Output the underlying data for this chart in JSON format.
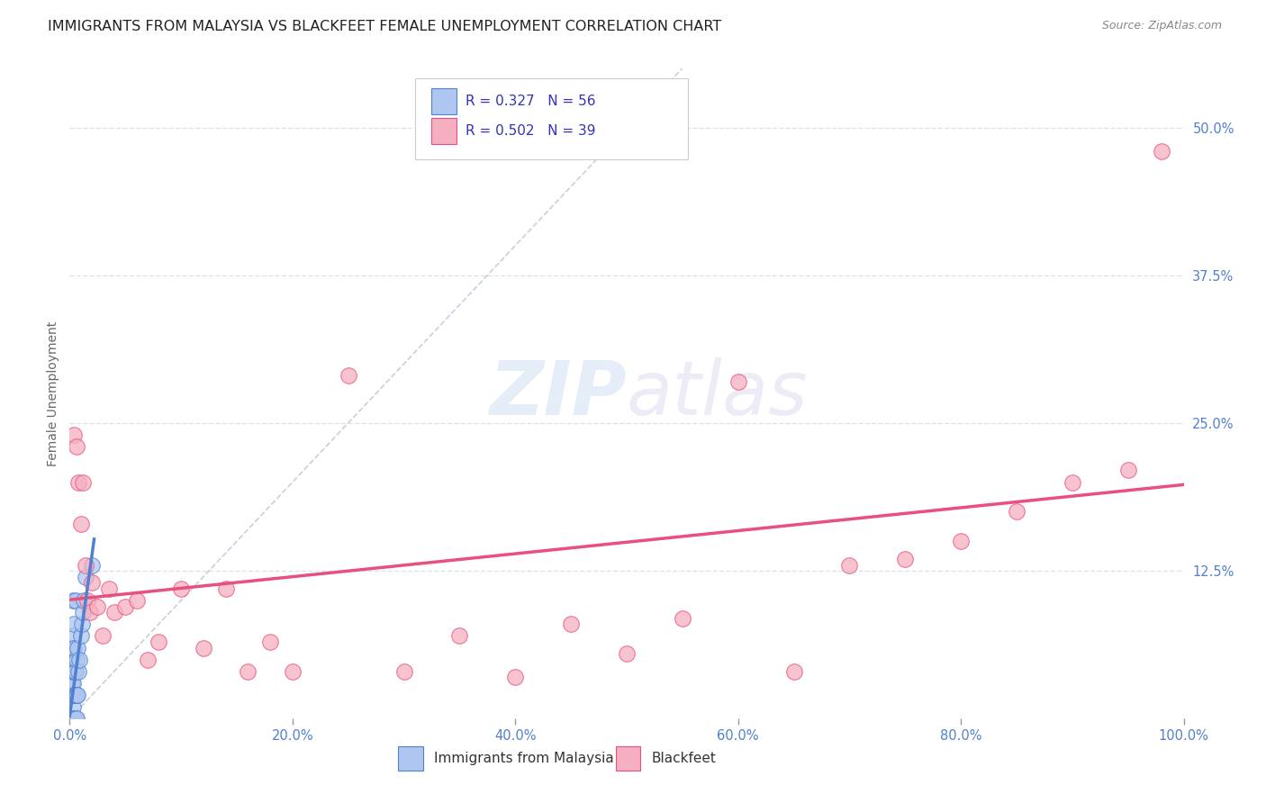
{
  "title": "IMMIGRANTS FROM MALAYSIA VS BLACKFEET FEMALE UNEMPLOYMENT CORRELATION CHART",
  "source": "Source: ZipAtlas.com",
  "ylabel": "Female Unemployment",
  "legend_label1": "Immigrants from Malaysia",
  "legend_label2": "Blackfeet",
  "r1": 0.327,
  "n1": 56,
  "r2": 0.502,
  "n2": 39,
  "color1": "#aec6f0",
  "color2": "#f5afc0",
  "line_color1": "#5080d0",
  "line_color2": "#e85080",
  "diagonal_color": "#b8c4d8",
  "watermark_zip": "ZIP",
  "watermark_atlas": "atlas",
  "xlim": [
    0,
    1.0
  ],
  "ylim": [
    0,
    0.55
  ],
  "xticklabels": [
    "0.0%",
    "20.0%",
    "40.0%",
    "60.0%",
    "80.0%",
    "100.0%"
  ],
  "ytick_right": [
    0.0,
    0.125,
    0.25,
    0.375,
    0.5
  ],
  "ytick_right_labels": [
    "",
    "12.5%",
    "25.0%",
    "37.5%",
    "50.0%"
  ],
  "malaysia_x": [
    0.001,
    0.001,
    0.001,
    0.001,
    0.002,
    0.002,
    0.002,
    0.002,
    0.002,
    0.002,
    0.002,
    0.002,
    0.002,
    0.002,
    0.002,
    0.002,
    0.002,
    0.002,
    0.002,
    0.002,
    0.003,
    0.003,
    0.003,
    0.003,
    0.003,
    0.003,
    0.003,
    0.003,
    0.003,
    0.003,
    0.003,
    0.003,
    0.003,
    0.004,
    0.004,
    0.004,
    0.004,
    0.004,
    0.004,
    0.005,
    0.005,
    0.005,
    0.005,
    0.006,
    0.006,
    0.006,
    0.007,
    0.007,
    0.008,
    0.009,
    0.01,
    0.011,
    0.012,
    0.013,
    0.014,
    0.02
  ],
  "malaysia_y": [
    0.0,
    0.0,
    0.0,
    0.0,
    0.0,
    0.0,
    0.0,
    0.0,
    0.0,
    0.0,
    0.0,
    0.0,
    0.0,
    0.02,
    0.02,
    0.02,
    0.03,
    0.04,
    0.05,
    0.06,
    0.0,
    0.0,
    0.0,
    0.0,
    0.0,
    0.01,
    0.02,
    0.03,
    0.04,
    0.05,
    0.06,
    0.07,
    0.1,
    0.0,
    0.0,
    0.02,
    0.04,
    0.06,
    0.08,
    0.0,
    0.02,
    0.04,
    0.1,
    0.0,
    0.02,
    0.05,
    0.02,
    0.06,
    0.04,
    0.05,
    0.07,
    0.08,
    0.09,
    0.1,
    0.12,
    0.13
  ],
  "blackfeet_x": [
    0.004,
    0.006,
    0.008,
    0.01,
    0.012,
    0.014,
    0.016,
    0.018,
    0.02,
    0.025,
    0.03,
    0.035,
    0.04,
    0.05,
    0.06,
    0.07,
    0.08,
    0.1,
    0.12,
    0.14,
    0.16,
    0.18,
    0.2,
    0.25,
    0.3,
    0.35,
    0.4,
    0.45,
    0.5,
    0.55,
    0.6,
    0.65,
    0.7,
    0.75,
    0.8,
    0.85,
    0.9,
    0.95,
    0.98
  ],
  "blackfeet_y": [
    0.24,
    0.23,
    0.2,
    0.165,
    0.2,
    0.13,
    0.1,
    0.09,
    0.115,
    0.095,
    0.07,
    0.11,
    0.09,
    0.095,
    0.1,
    0.05,
    0.065,
    0.11,
    0.06,
    0.11,
    0.04,
    0.065,
    0.04,
    0.29,
    0.04,
    0.07,
    0.035,
    0.08,
    0.055,
    0.085,
    0.285,
    0.04,
    0.13,
    0.135,
    0.15,
    0.175,
    0.2,
    0.21,
    0.48
  ],
  "background_color": "#ffffff",
  "grid_color": "#dde2ee",
  "title_fontsize": 11.5,
  "source_fontsize": 9,
  "axis_label_fontsize": 10,
  "tick_fontsize": 10.5,
  "legend_fontsize": 11
}
